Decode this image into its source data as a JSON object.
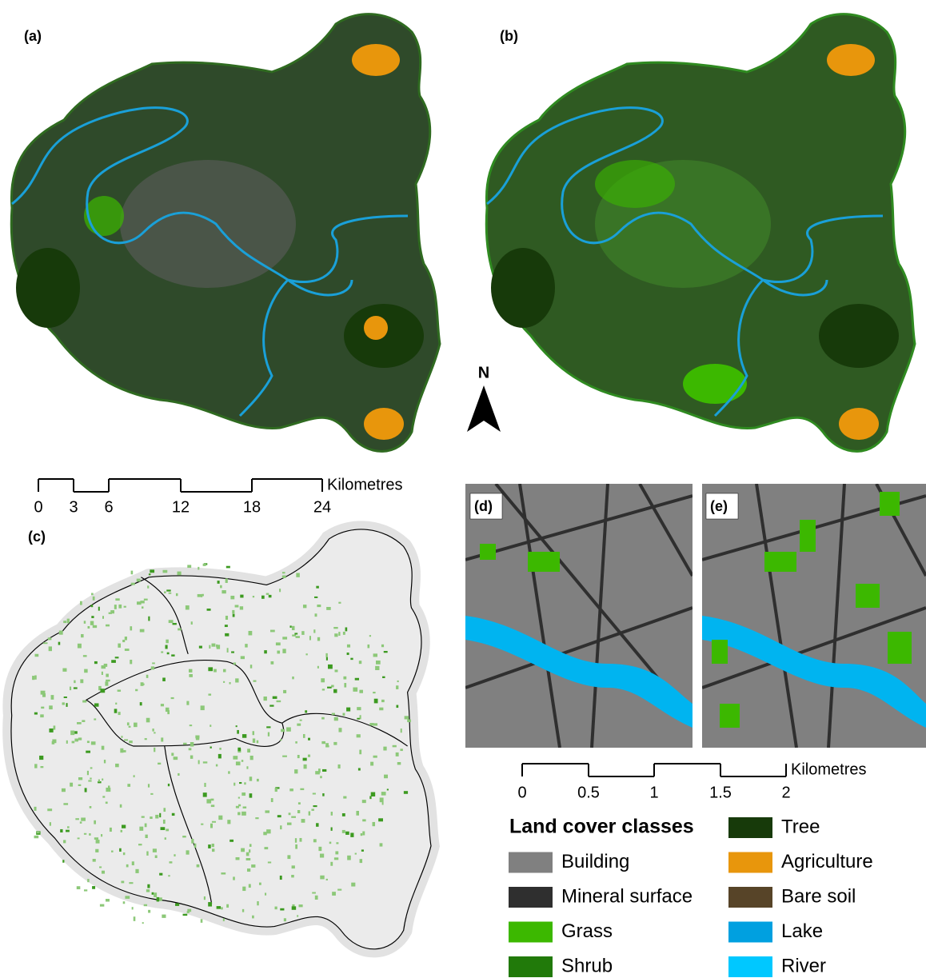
{
  "panels": {
    "a": "(a)",
    "b": "(b)",
    "c": "(c)",
    "d": "(d)",
    "e": "(e)"
  },
  "north": "N",
  "scale_large": {
    "labels": [
      "0",
      "3",
      "6",
      "12",
      "18",
      "24"
    ],
    "unit": "Kilometres"
  },
  "scale_small": {
    "labels": [
      "0",
      "0.5",
      "1",
      "1.5",
      "2"
    ],
    "unit": "Kilometres"
  },
  "legend": {
    "title": "Land cover classes",
    "items": [
      {
        "label": "Building",
        "color": "#808080"
      },
      {
        "label": "Mineral surface",
        "color": "#2f2f2f"
      },
      {
        "label": "Grass",
        "color": "#3cb800"
      },
      {
        "label": "Shrub",
        "color": "#217a0a"
      },
      {
        "label": "Tree",
        "color": "#173a0a"
      },
      {
        "label": "Agriculture",
        "color": "#e8960c"
      },
      {
        "label": "Bare soil",
        "color": "#574428"
      },
      {
        "label": "Lake",
        "color": "#00a0e0"
      },
      {
        "label": "River",
        "color": "#00c8ff"
      }
    ]
  }
}
